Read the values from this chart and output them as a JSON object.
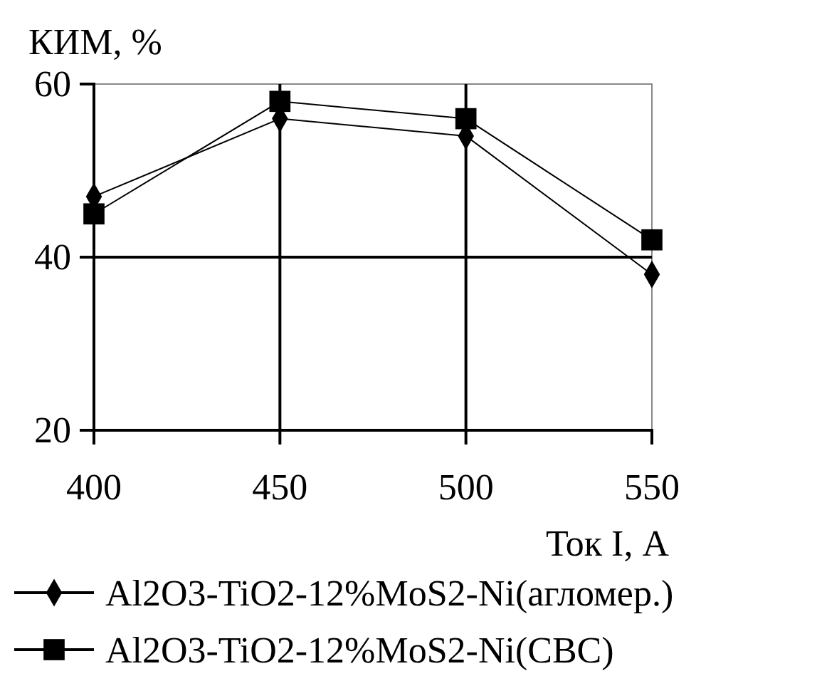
{
  "chart_data": {
    "type": "line",
    "ylabel": "КИМ, %",
    "xlabel": "Ток I, А",
    "x": [
      400,
      450,
      500,
      550
    ],
    "xlim": [
      400,
      550
    ],
    "xticks": [
      400,
      450,
      500,
      550
    ],
    "ylim": [
      20,
      60
    ],
    "yticks": [
      20,
      40,
      60
    ],
    "grid": true,
    "legend": "bottom",
    "series": [
      {
        "name": "Al2O3-TiO2-12%MoS2-Ni(агломер.)",
        "color": "#000000",
        "marker": "diamond",
        "values": [
          47,
          56,
          54,
          38
        ]
      },
      {
        "name": "Al2O3-TiO2-12%MoS2-Ni(СВС)",
        "color": "#000000",
        "marker": "square",
        "values": [
          45,
          58,
          56,
          42
        ]
      }
    ]
  }
}
